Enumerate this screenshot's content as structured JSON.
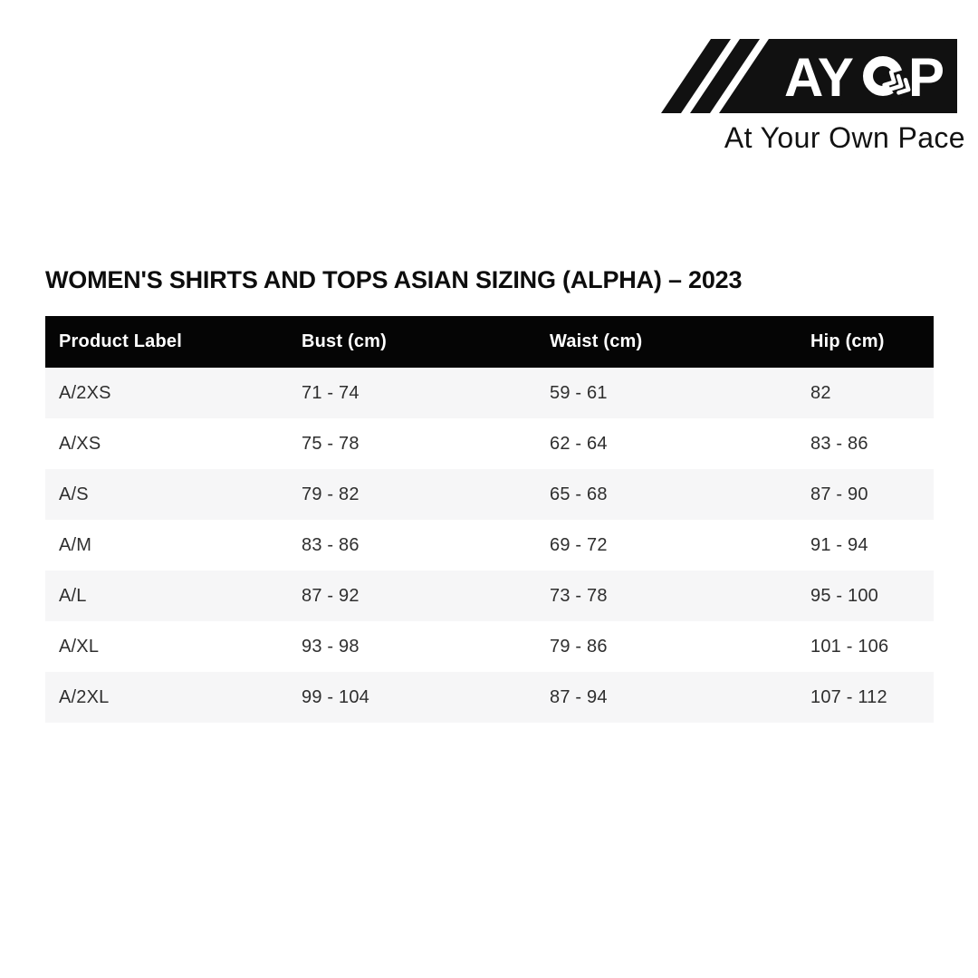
{
  "logo": {
    "brand": "AYOP",
    "brand_left": "AY",
    "brand_right": "P",
    "tagline": "At Your Own Pace",
    "colors": {
      "block": "#111111",
      "letters": "#ffffff"
    }
  },
  "title": "WOMEN'S SHIRTS AND TOPS ASIAN SIZING (ALPHA) – 2023",
  "table": {
    "headers": [
      "Product Label",
      "Bust (cm)",
      "Waist (cm)",
      "Hip (cm)"
    ],
    "rows": [
      [
        "A/2XS",
        "71 - 74",
        "59 - 61",
        "82"
      ],
      [
        "A/XS",
        "75 - 78",
        "62 - 64",
        "83 - 86"
      ],
      [
        "A/S",
        "79 - 82",
        "65 - 68",
        "87 - 90"
      ],
      [
        "A/M",
        "83 - 86",
        "69 - 72",
        "91 - 94"
      ],
      [
        "A/L",
        "87 - 92",
        "73 - 78",
        "95 - 100"
      ],
      [
        "A/XL",
        "93 - 98",
        "79 - 86",
        "101 - 106"
      ],
      [
        "A/2XL",
        "99 - 104",
        "87 - 94",
        "107 - 112"
      ]
    ],
    "colors": {
      "header_bg": "#050505",
      "header_text": "#ffffff",
      "shaded_row_bg": "#f6f6f7",
      "plain_row_bg": "#ffffff",
      "cell_text": "#2e2e2e"
    }
  }
}
